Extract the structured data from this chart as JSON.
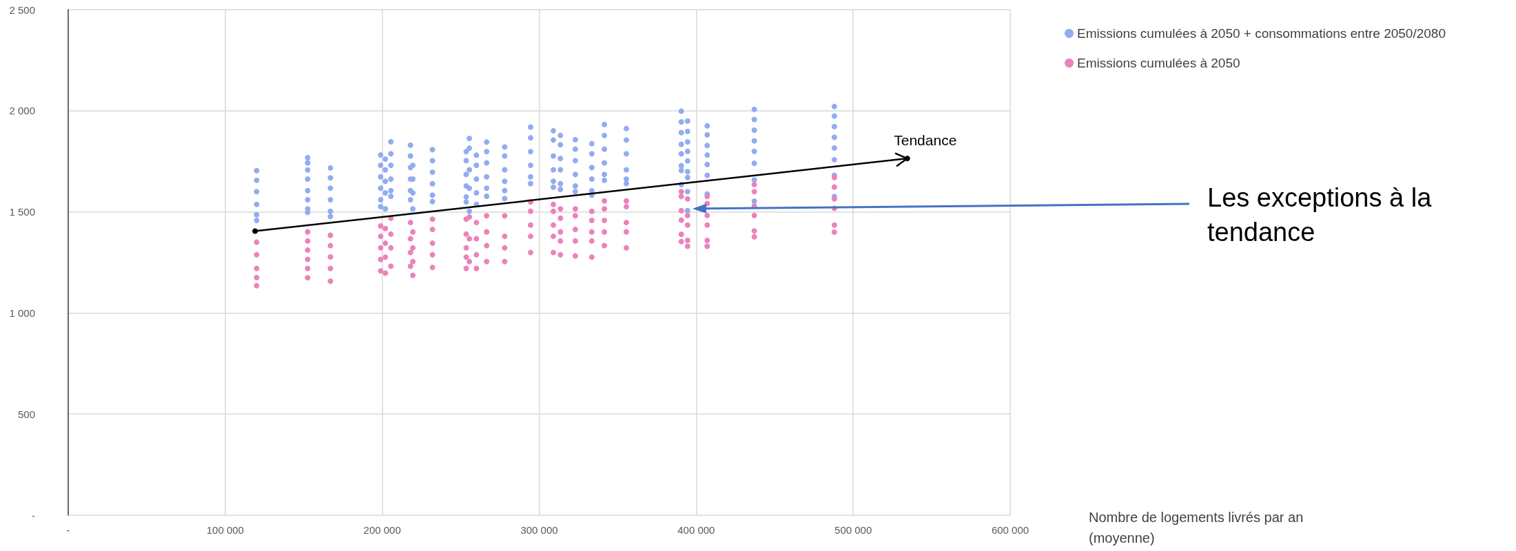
{
  "chart_data": {
    "type": "scatter",
    "xlabel": "Nombre de logements livrés par an (moyenne)",
    "xlim": [
      0,
      600000
    ],
    "xticks": [
      {
        "value": 0,
        "label": "-"
      },
      {
        "value": 100000,
        "label": "100 000"
      },
      {
        "value": 200000,
        "label": "200 000"
      },
      {
        "value": 300000,
        "label": "300 000"
      },
      {
        "value": 400000,
        "label": "400 000"
      },
      {
        "value": 500000,
        "label": "500 000"
      },
      {
        "value": 600000,
        "label": "600 000"
      }
    ],
    "ylim": [
      0,
      2500
    ],
    "yticks": [
      {
        "value": 0,
        "label": "-"
      },
      {
        "value": 500,
        "label": "500"
      },
      {
        "value": 1000,
        "label": "1 000"
      },
      {
        "value": 1500,
        "label": "1 500"
      },
      {
        "value": 2000,
        "label": "2 000"
      },
      {
        "value": 2500,
        "label": "2 500"
      }
    ],
    "grid": true,
    "legend": "top right",
    "marker": "circle",
    "annotations": [
      "Les exceptions à la tendance"
    ],
    "series": [
      {
        "name": "Emissions cumulées à 2050 + consommations entre 2050/2080",
        "color": "#92acf0",
        "x": [
          120000,
          120000,
          120000,
          120000,
          120000,
          120000,
          152500,
          152500,
          152500,
          152500,
          152500,
          152500,
          152500,
          152500,
          167000,
          167000,
          167000,
          167000,
          167000,
          167000,
          199000,
          199000,
          199000,
          199000,
          199000,
          199000,
          202000,
          202000,
          202000,
          202000,
          202000,
          205500,
          205500,
          205500,
          205500,
          205500,
          205500,
          218000,
          218000,
          218000,
          218000,
          218000,
          218000,
          219500,
          219500,
          219500,
          219500,
          232000,
          232000,
          232000,
          232000,
          232000,
          232000,
          253500,
          253500,
          253500,
          253500,
          253500,
          253500,
          255500,
          255500,
          255500,
          255500,
          255500,
          260000,
          260000,
          260000,
          260000,
          260000,
          266500,
          266500,
          266500,
          266500,
          266500,
          266500,
          278000,
          278000,
          278000,
          278000,
          278000,
          278000,
          294500,
          294500,
          294500,
          294500,
          294500,
          294500,
          309000,
          309000,
          309000,
          309000,
          309000,
          309000,
          313500,
          313500,
          313500,
          313500,
          313500,
          313500,
          323000,
          323000,
          323000,
          323000,
          323000,
          323000,
          333500,
          333500,
          333500,
          333500,
          333500,
          333500,
          341500,
          341500,
          341500,
          341500,
          341500,
          341500,
          355500,
          355500,
          355500,
          355500,
          355500,
          355500,
          390500,
          390500,
          390500,
          390500,
          390500,
          390500,
          390500,
          390500,
          394500,
          394500,
          394500,
          394500,
          394500,
          394500,
          394500,
          394500,
          394500,
          407000,
          407000,
          407000,
          407000,
          407000,
          407000,
          407000,
          437000,
          437000,
          437000,
          437000,
          437000,
          437000,
          437000,
          437000,
          488000,
          488000,
          488000,
          488000,
          488000,
          488000,
          488000,
          488000
        ],
        "values": [
          1704,
          1656,
          1600,
          1537,
          1486,
          1458,
          1768,
          1742,
          1707,
          1662,
          1605,
          1560,
          1515,
          1498,
          1717,
          1668,
          1617,
          1560,
          1503,
          1477,
          1781,
          1730,
          1673,
          1617,
          1560,
          1526,
          1761,
          1708,
          1651,
          1594,
          1515,
          1847,
          1787,
          1730,
          1662,
          1605,
          1577,
          1830,
          1776,
          1719,
          1662,
          1605,
          1560,
          1730,
          1662,
          1594,
          1515,
          1808,
          1753,
          1696,
          1639,
          1583,
          1551,
          1798,
          1753,
          1685,
          1628,
          1574,
          1549,
          1863,
          1815,
          1708,
          1617,
          1503,
          1780,
          1730,
          1662,
          1594,
          1537,
          1845,
          1798,
          1742,
          1673,
          1617,
          1577,
          1821,
          1776,
          1708,
          1651,
          1605,
          1566,
          1919,
          1866,
          1798,
          1730,
          1673,
          1640,
          1901,
          1855,
          1776,
          1708,
          1651,
          1622,
          1878,
          1832,
          1764,
          1708,
          1639,
          1611,
          1857,
          1810,
          1753,
          1685,
          1628,
          1600,
          1837,
          1787,
          1719,
          1662,
          1605,
          1583,
          1932,
          1878,
          1810,
          1742,
          1685,
          1656,
          1912,
          1855,
          1787,
          1708,
          1662,
          1640,
          1998,
          1945,
          1892,
          1834,
          1787,
          1728,
          1705,
          1635,
          1949,
          1898,
          1846,
          1799,
          1752,
          1699,
          1670,
          1600,
          1506,
          1925,
          1881,
          1828,
          1781,
          1734,
          1681,
          1588,
          2007,
          1957,
          1904,
          1851,
          1799,
          1740,
          1658,
          1553,
          2021,
          1974,
          1922,
          1869,
          1816,
          1758,
          1681,
          1576
        ]
      },
      {
        "name": "Emissions cumulées à 2050",
        "color": "#ec82bb",
        "x": [
          120000,
          120000,
          120000,
          120000,
          120000,
          152500,
          152500,
          152500,
          152500,
          152500,
          152500,
          167000,
          167000,
          167000,
          167000,
          167000,
          199000,
          199000,
          199000,
          199000,
          199000,
          202000,
          202000,
          202000,
          202000,
          205500,
          205500,
          205500,
          205500,
          218000,
          218000,
          218000,
          218000,
          219500,
          219500,
          219500,
          219500,
          232000,
          232000,
          232000,
          232000,
          232000,
          253500,
          253500,
          253500,
          253500,
          253500,
          255500,
          255500,
          255500,
          260000,
          260000,
          260000,
          260000,
          266500,
          266500,
          266500,
          266500,
          278000,
          278000,
          278000,
          278000,
          294500,
          294500,
          294500,
          294500,
          294500,
          309000,
          309000,
          309000,
          309000,
          309000,
          313500,
          313500,
          313500,
          313500,
          313500,
          323000,
          323000,
          323000,
          323000,
          323000,
          333500,
          333500,
          333500,
          333500,
          333500,
          341500,
          341500,
          341500,
          341500,
          341500,
          355500,
          355500,
          355500,
          355500,
          355500,
          390500,
          390500,
          390500,
          390500,
          390500,
          390500,
          394500,
          394500,
          394500,
          394500,
          394500,
          407000,
          407000,
          407000,
          407000,
          407000,
          407000,
          437000,
          437000,
          437000,
          437000,
          437000,
          437000,
          488000,
          488000,
          488000,
          488000,
          488000,
          488000
        ],
        "values": [
          1350,
          1288,
          1220,
          1175,
          1135,
          1401,
          1356,
          1311,
          1265,
          1220,
          1174,
          1384,
          1333,
          1277,
          1220,
          1157,
          1430,
          1379,
          1322,
          1265,
          1208,
          1418,
          1345,
          1276,
          1197,
          1469,
          1390,
          1322,
          1231,
          1447,
          1367,
          1299,
          1231,
          1401,
          1322,
          1254,
          1186,
          1464,
          1413,
          1345,
          1288,
          1225,
          1464,
          1390,
          1322,
          1276,
          1220,
          1475,
          1367,
          1254,
          1447,
          1367,
          1288,
          1220,
          1481,
          1401,
          1333,
          1254,
          1481,
          1379,
          1322,
          1254,
          1549,
          1503,
          1435,
          1379,
          1299,
          1537,
          1503,
          1435,
          1379,
          1299,
          1515,
          1469,
          1401,
          1356,
          1288,
          1515,
          1481,
          1413,
          1356,
          1282,
          1503,
          1458,
          1401,
          1356,
          1276,
          1554,
          1515,
          1458,
          1401,
          1333,
          1554,
          1526,
          1447,
          1401,
          1322,
          1600,
          1576,
          1506,
          1459,
          1389,
          1353,
          1564,
          1482,
          1435,
          1359,
          1330,
          1576,
          1541,
          1482,
          1435,
          1359,
          1330,
          1635,
          1600,
          1529,
          1482,
          1406,
          1377,
          1670,
          1623,
          1564,
          1517,
          1435,
          1400
        ]
      },
      {
        "name": "Tendance",
        "type": "line",
        "color": "#000000",
        "line_style": "solid",
        "x": [
          119000,
          534500
        ],
        "values": [
          1405,
          1764
        ]
      }
    ]
  }
}
